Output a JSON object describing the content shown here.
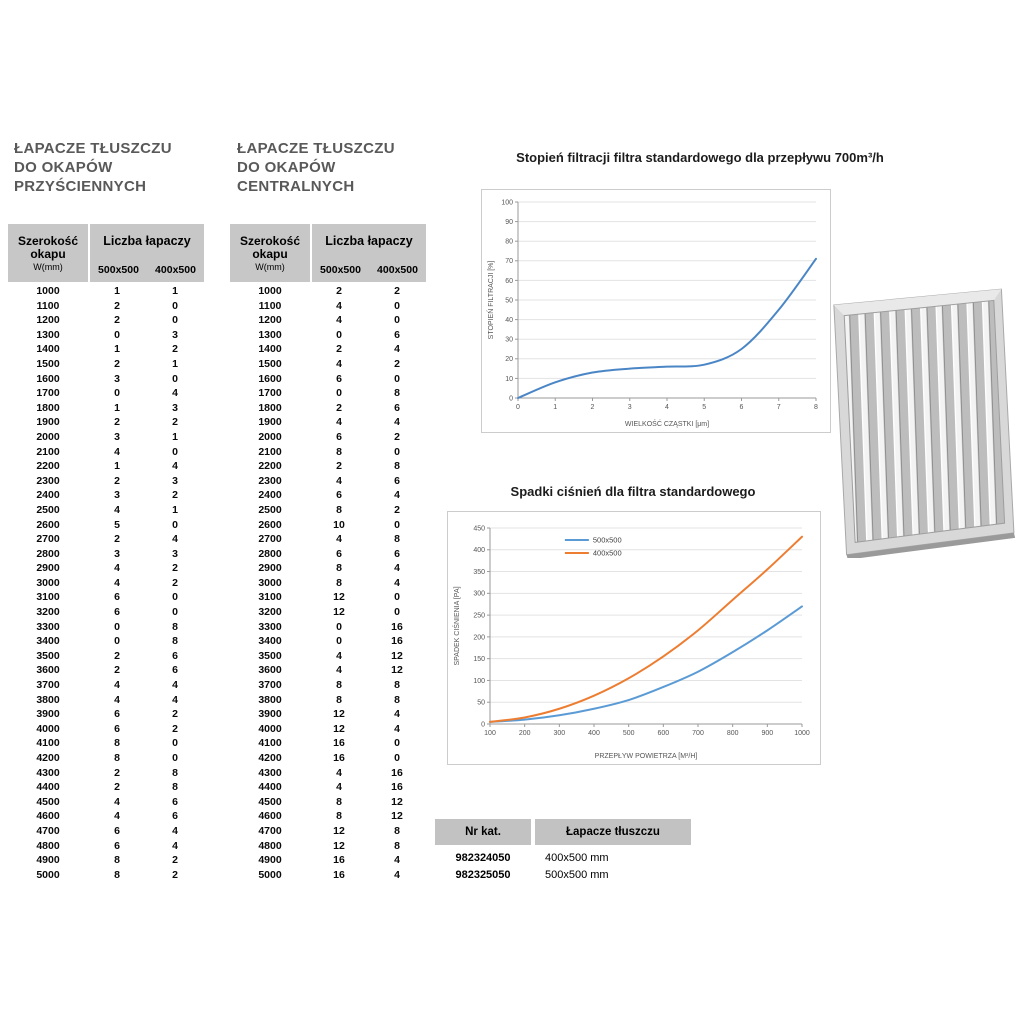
{
  "tables": [
    {
      "title_lines": [
        "ŁAPACZE TŁUSZCZU",
        "DO OKAPÓW",
        "PRZYŚCIENNYCH"
      ],
      "header": {
        "col1": "Szerokość okapu",
        "col1_sub": "W(mm)",
        "group": "Liczba łapaczy",
        "col2": "500x500",
        "col3": "400x500"
      },
      "rows": [
        [
          1000,
          1,
          1
        ],
        [
          1100,
          2,
          0
        ],
        [
          1200,
          2,
          0
        ],
        [
          1300,
          0,
          3
        ],
        [
          1400,
          1,
          2
        ],
        [
          1500,
          2,
          1
        ],
        [
          1600,
          3,
          0
        ],
        [
          1700,
          0,
          4
        ],
        [
          1800,
          1,
          3
        ],
        [
          1900,
          2,
          2
        ],
        [
          2000,
          3,
          1
        ],
        [
          2100,
          4,
          0
        ],
        [
          2200,
          1,
          4
        ],
        [
          2300,
          2,
          3
        ],
        [
          2400,
          3,
          2
        ],
        [
          2500,
          4,
          1
        ],
        [
          2600,
          5,
          0
        ],
        [
          2700,
          2,
          4
        ],
        [
          2800,
          3,
          3
        ],
        [
          2900,
          4,
          2
        ],
        [
          3000,
          4,
          2
        ],
        [
          3100,
          6,
          0
        ],
        [
          3200,
          6,
          0
        ],
        [
          3300,
          0,
          8
        ],
        [
          3400,
          0,
          8
        ],
        [
          3500,
          2,
          6
        ],
        [
          3600,
          2,
          6
        ],
        [
          3700,
          4,
          4
        ],
        [
          3800,
          4,
          4
        ],
        [
          3900,
          6,
          2
        ],
        [
          4000,
          6,
          2
        ],
        [
          4100,
          8,
          0
        ],
        [
          4200,
          8,
          0
        ],
        [
          4300,
          2,
          8
        ],
        [
          4400,
          2,
          8
        ],
        [
          4500,
          4,
          6
        ],
        [
          4600,
          4,
          6
        ],
        [
          4700,
          6,
          4
        ],
        [
          4800,
          6,
          4
        ],
        [
          4900,
          8,
          2
        ],
        [
          5000,
          8,
          2
        ]
      ]
    },
    {
      "title_lines": [
        "ŁAPACZE TŁUSZCZU",
        "DO OKAPÓW",
        "CENTRALNYCH"
      ],
      "header": {
        "col1": "Szerokość okapu",
        "col1_sub": "W(mm)",
        "group": "Liczba łapaczy",
        "col2": "500x500",
        "col3": "400x500"
      },
      "rows": [
        [
          1000,
          2,
          2
        ],
        [
          1100,
          4,
          0
        ],
        [
          1200,
          4,
          0
        ],
        [
          1300,
          0,
          6
        ],
        [
          1400,
          2,
          4
        ],
        [
          1500,
          4,
          2
        ],
        [
          1600,
          6,
          0
        ],
        [
          1700,
          0,
          8
        ],
        [
          1800,
          2,
          6
        ],
        [
          1900,
          4,
          4
        ],
        [
          2000,
          6,
          2
        ],
        [
          2100,
          8,
          0
        ],
        [
          2200,
          2,
          8
        ],
        [
          2300,
          4,
          6
        ],
        [
          2400,
          6,
          4
        ],
        [
          2500,
          8,
          2
        ],
        [
          2600,
          10,
          0
        ],
        [
          2700,
          4,
          8
        ],
        [
          2800,
          6,
          6
        ],
        [
          2900,
          8,
          4
        ],
        [
          3000,
          8,
          4
        ],
        [
          3100,
          12,
          0
        ],
        [
          3200,
          12,
          0
        ],
        [
          3300,
          0,
          16
        ],
        [
          3400,
          0,
          16
        ],
        [
          3500,
          4,
          12
        ],
        [
          3600,
          4,
          12
        ],
        [
          3700,
          8,
          8
        ],
        [
          3800,
          8,
          8
        ],
        [
          3900,
          12,
          4
        ],
        [
          4000,
          12,
          4
        ],
        [
          4100,
          16,
          0
        ],
        [
          4200,
          16,
          0
        ],
        [
          4300,
          4,
          16
        ],
        [
          4400,
          4,
          16
        ],
        [
          4500,
          8,
          12
        ],
        [
          4600,
          8,
          12
        ],
        [
          4700,
          12,
          8
        ],
        [
          4800,
          12,
          8
        ],
        [
          4900,
          16,
          4
        ],
        [
          5000,
          16,
          4
        ]
      ]
    }
  ],
  "chart_data": [
    {
      "type": "line",
      "title": "Stopień filtracji filtra standardowego dla przepływu 700m³/h",
      "xlabel": "WIELKOŚĆ CZĄSTKI [μm]",
      "ylabel": "STOPIEŃ FILTRACJI [%]",
      "xlim": [
        0,
        8
      ],
      "ylim": [
        0,
        100
      ],
      "xticks": [
        0,
        1,
        2,
        3,
        4,
        5,
        6,
        7,
        8
      ],
      "yticks": [
        0,
        10,
        20,
        30,
        40,
        50,
        60,
        70,
        80,
        90,
        100
      ],
      "grid": true,
      "legend": false,
      "series": [
        {
          "name": "filtracja-standard",
          "color": "#4a86c6",
          "x": [
            0,
            1,
            2,
            3,
            4,
            5,
            6,
            7,
            8
          ],
          "y": [
            0,
            8,
            13,
            15,
            16,
            17,
            25,
            45,
            71
          ]
        }
      ]
    },
    {
      "type": "line",
      "title": "Spadki ciśnień dla filtra standardowego",
      "xlabel": "PRZEPŁYW POWIETRZA [M³/H]",
      "ylabel": "SPADEK CIŚNIENIA [PA]",
      "xlim": [
        100,
        1000
      ],
      "ylim": [
        0,
        450
      ],
      "xticks": [
        100,
        200,
        300,
        400,
        500,
        600,
        700,
        800,
        900,
        1000
      ],
      "yticks": [
        0,
        50,
        100,
        150,
        200,
        250,
        300,
        350,
        400,
        450
      ],
      "grid": true,
      "legend": true,
      "legend_position": "top-center",
      "series": [
        {
          "name": "500x500",
          "color": "#5b9bd5",
          "x": [
            100,
            200,
            300,
            400,
            500,
            600,
            700,
            800,
            900,
            1000
          ],
          "y": [
            5,
            10,
            20,
            35,
            55,
            85,
            120,
            165,
            215,
            270
          ]
        },
        {
          "name": "400x500",
          "color": "#ed7d31",
          "x": [
            100,
            200,
            300,
            400,
            500,
            600,
            700,
            800,
            900,
            1000
          ],
          "y": [
            5,
            15,
            35,
            65,
            105,
            155,
            215,
            285,
            355,
            430
          ]
        }
      ]
    }
  ],
  "catalog": {
    "headers": [
      "Nr kat.",
      "Łapacze tłuszczu"
    ],
    "rows": [
      [
        "982324050",
        "400x500 mm"
      ],
      [
        "982325050",
        "500x500 mm"
      ]
    ]
  },
  "filter_image": {
    "name": "baffle-grease-filter-photo"
  }
}
